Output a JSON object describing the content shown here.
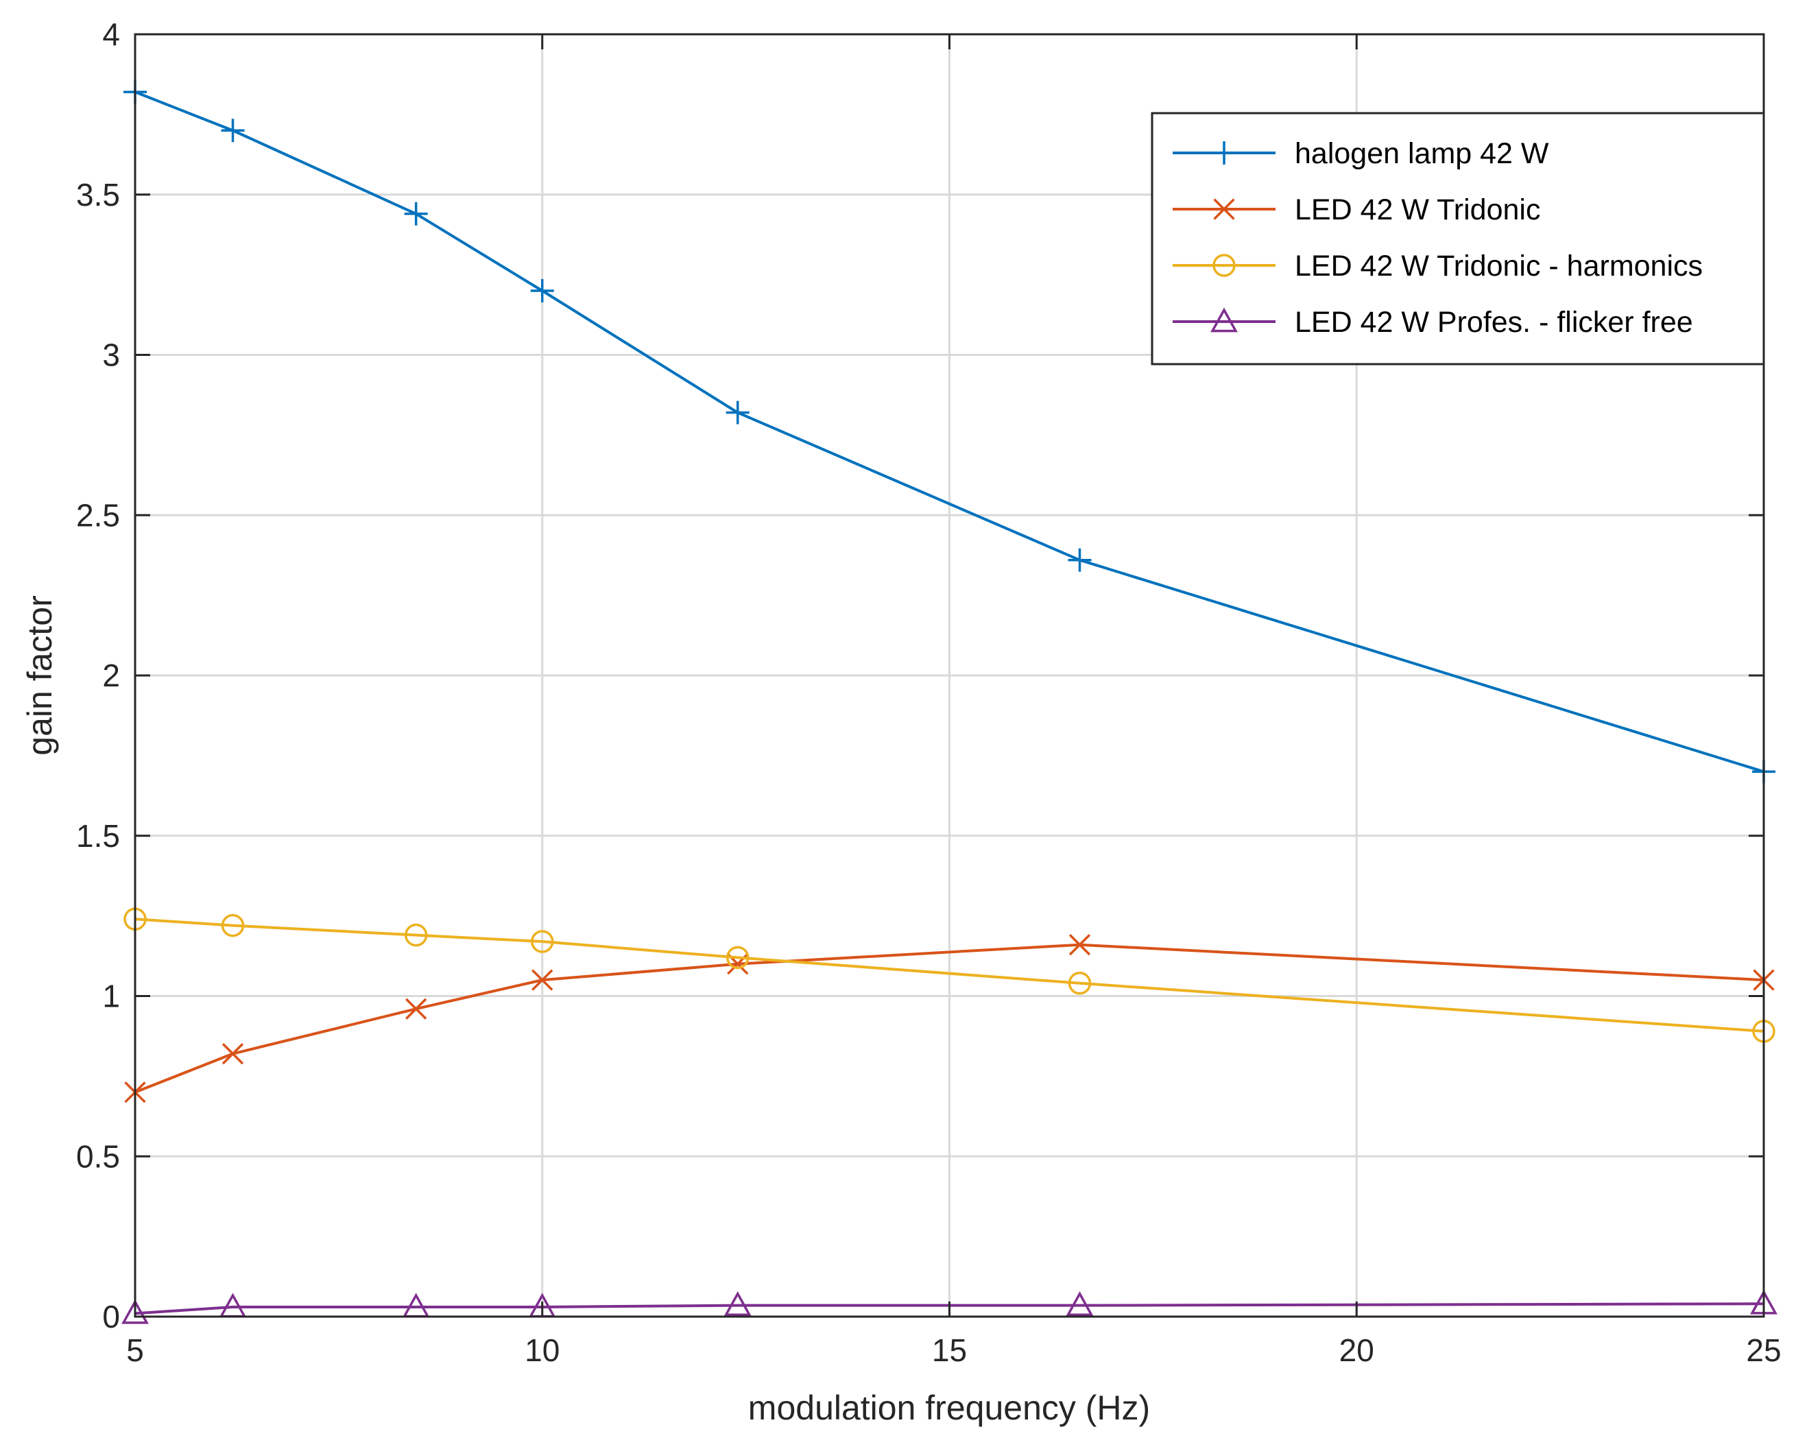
{
  "chart_data": {
    "type": "line",
    "title": "",
    "xlabel": "modulation frequency (Hz)",
    "ylabel": "gain factor",
    "xlim": [
      5,
      25
    ],
    "ylim": [
      0,
      4
    ],
    "xticks": [
      5,
      10,
      15,
      20,
      25
    ],
    "yticks": [
      0,
      0.5,
      1,
      1.5,
      2,
      2.5,
      3,
      3.5,
      4
    ],
    "xtick_labels": [
      "5",
      "10",
      "15",
      "20",
      "25"
    ],
    "ytick_labels": [
      "0",
      "0.5",
      "1",
      "1.5",
      "2",
      "2.5",
      "3",
      "3.5",
      "4"
    ],
    "grid": true,
    "legend_location": "top-right",
    "series": [
      {
        "name": "halogen lamp 42 W",
        "color": "#0072BD",
        "marker": "plus",
        "x": [
          5,
          6.2,
          8.45,
          10,
          12.4,
          16.6,
          25
        ],
        "y": [
          3.82,
          3.7,
          3.44,
          3.2,
          2.82,
          2.36,
          1.7
        ]
      },
      {
        "name": "LED 42 W Tridonic",
        "color": "#D95319",
        "marker": "x",
        "x": [
          5,
          6.2,
          8.45,
          10,
          12.4,
          16.6,
          25
        ],
        "y": [
          0.7,
          0.82,
          0.96,
          1.05,
          1.1,
          1.16,
          1.05
        ]
      },
      {
        "name": "LED 42 W Tridonic - harmonics",
        "color": "#EDB120",
        "marker": "circle",
        "x": [
          5,
          6.2,
          8.45,
          10,
          12.4,
          16.6,
          25
        ],
        "y": [
          1.24,
          1.22,
          1.19,
          1.17,
          1.12,
          1.04,
          0.89
        ]
      },
      {
        "name": "LED 42 W Profes. - flicker free",
        "color": "#7E2F8E",
        "marker": "triangle",
        "x": [
          5,
          6.2,
          8.45,
          10,
          12.4,
          16.6,
          25
        ],
        "y": [
          0.01,
          0.03,
          0.03,
          0.03,
          0.035,
          0.035,
          0.04
        ]
      }
    ]
  }
}
